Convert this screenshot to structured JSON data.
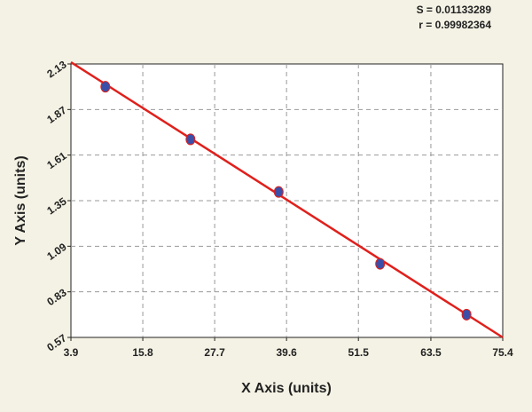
{
  "chart_data": {
    "type": "scatter",
    "annotations": [
      "S = 0.01133289",
      "r = 0.99982364"
    ],
    "xlabel": "X Axis (units)",
    "ylabel": "Y Axis (units)",
    "x": [
      9.6,
      23.7,
      38.3,
      55.1,
      69.4
    ],
    "values": [
      2.0,
      1.7,
      1.4,
      0.99,
      0.7
    ],
    "color": "#3b4fa8",
    "fit": {
      "x": [
        3.9,
        75.4
      ],
      "y": [
        2.14,
        0.57
      ],
      "color": "#e0201c"
    },
    "xlim": [
      3.9,
      75.4
    ],
    "xticks": [
      3.9,
      15.8,
      27.7,
      39.6,
      51.5,
      63.5,
      75.4
    ],
    "ylim": [
      0.57,
      2.13
    ],
    "yticks": [
      0.57,
      0.83,
      1.09,
      1.35,
      1.61,
      1.87,
      2.13
    ],
    "grid": true
  }
}
